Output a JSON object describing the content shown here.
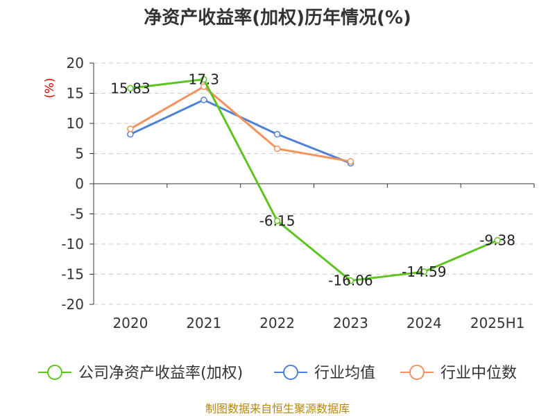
{
  "chart_data": {
    "type": "line",
    "title": "净资产收益率(加权)历年情况(%)",
    "ylabel": "(%)",
    "xlabel": "",
    "categories": [
      "2020",
      "2021",
      "2022",
      "2023",
      "2024",
      "2025H1"
    ],
    "ylim": [
      -20,
      20
    ],
    "yticks": [
      20,
      15,
      10,
      5,
      0,
      -5,
      -10,
      -15,
      -20
    ],
    "grid": true,
    "legend_position": "bottom",
    "series": [
      {
        "name": "公司净资产收益率(加权)",
        "color": "#5cc320",
        "values": [
          15.83,
          17.3,
          -6.15,
          -16.06,
          -14.59,
          -9.38
        ],
        "labels": [
          "15.83",
          "17.3",
          "-6.15",
          "-16.06",
          "-14.59",
          "-9.38"
        ]
      },
      {
        "name": "行业均值",
        "color": "#4f80d8",
        "values": [
          8.2,
          13.9,
          8.2,
          3.4,
          null,
          null
        ]
      },
      {
        "name": "行业中位数",
        "color": "#f4915d",
        "values": [
          9.1,
          16.1,
          5.8,
          3.7,
          null,
          null
        ]
      }
    ],
    "source": "制图数据来自恒生聚源数据库"
  }
}
